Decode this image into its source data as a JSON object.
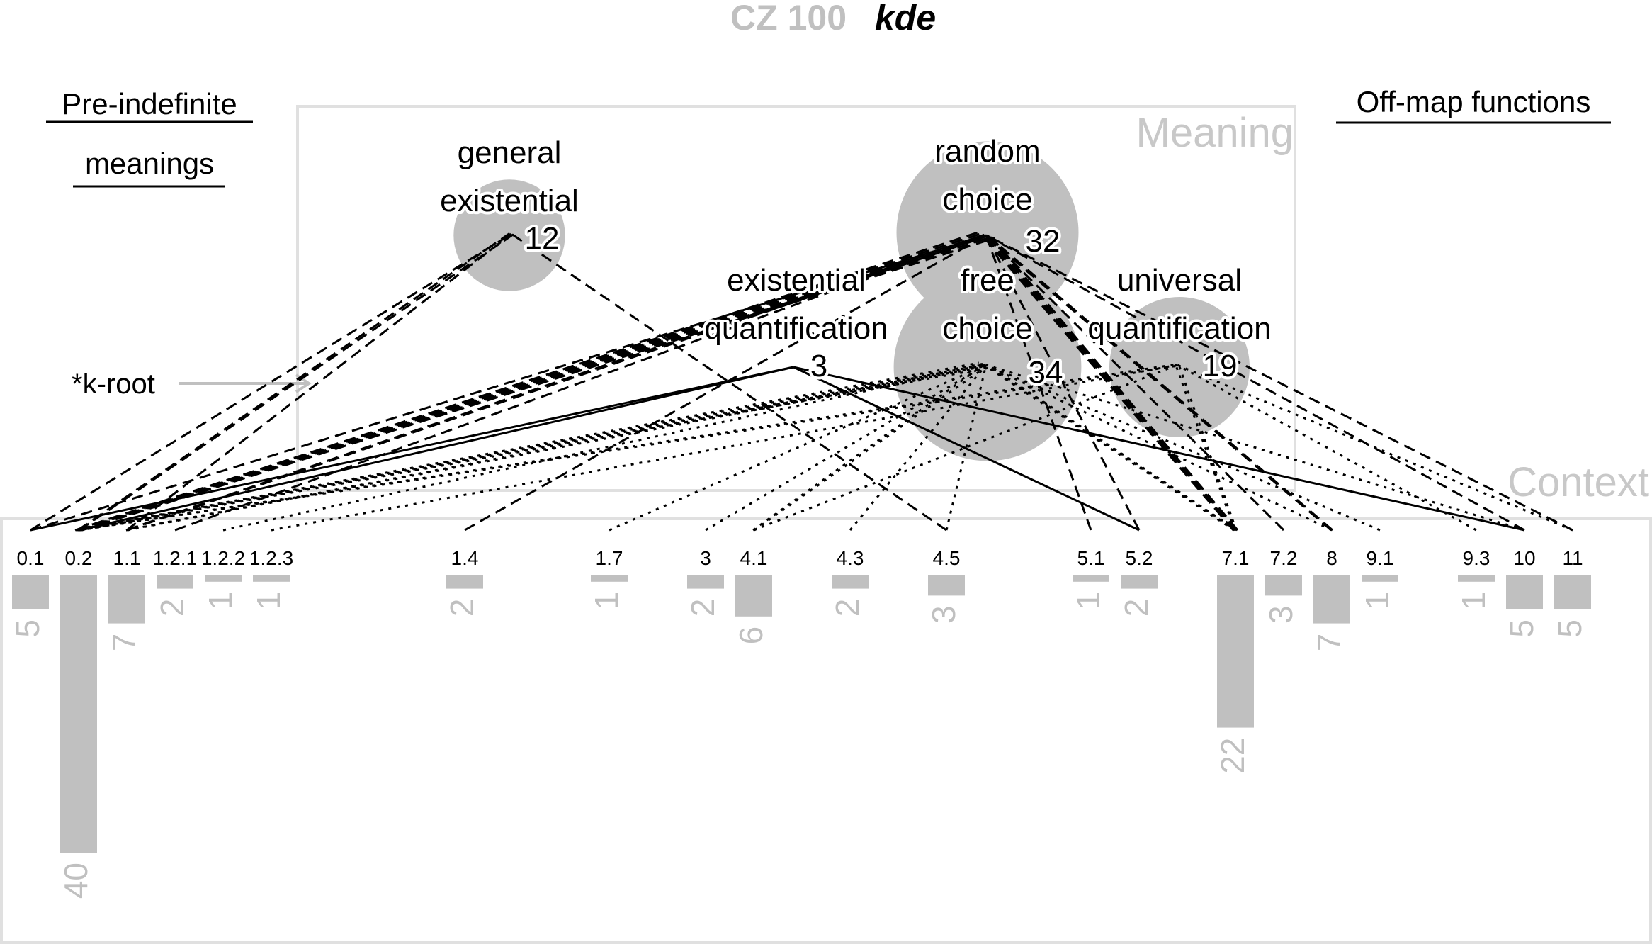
{
  "title": {
    "corpus": "CZ 100",
    "word": "kde"
  },
  "panels": {
    "pre_indefinite_line1": "Pre-indefinite",
    "pre_indefinite_line2": "meanings",
    "off_map": "Off-map functions",
    "meaning": "Meaning",
    "context": "Context",
    "root_label": "*k-root"
  },
  "colors": {
    "gray_fill": "#c0c0c0",
    "box_stroke": "#e0e0e0",
    "heading_gray": "#c0c0c0",
    "ink": "#000000"
  },
  "meanings": [
    {
      "id": "general_existential",
      "line1": "general",
      "line2": "existential",
      "count": "12",
      "value": 12
    },
    {
      "id": "random_choice",
      "line1": "random",
      "line2": "choice",
      "count": "32",
      "value": 32
    },
    {
      "id": "existential_quantification",
      "line1": "existential",
      "line2": "quantification",
      "count": "3",
      "value": 3
    },
    {
      "id": "free_choice",
      "line1": "free",
      "line2": "choice",
      "count": "34",
      "value": 34
    },
    {
      "id": "universal_quantification",
      "line1": "universal",
      "line2": "quantification",
      "count": "19",
      "value": 19
    }
  ],
  "contexts": [
    {
      "id": "0.1",
      "label": "0.1",
      "count": "5",
      "value": 5
    },
    {
      "id": "0.2",
      "label": "0.2",
      "count": "40",
      "value": 40
    },
    {
      "id": "1.1",
      "label": "1.1",
      "count": "7",
      "value": 7
    },
    {
      "id": "1.2.1",
      "label": "1.2.1",
      "count": "2",
      "value": 2
    },
    {
      "id": "1.2.2",
      "label": "1.2.2",
      "count": "1",
      "value": 1
    },
    {
      "id": "1.2.3",
      "label": "1.2.3",
      "count": "1",
      "value": 1
    },
    {
      "id": "1.4",
      "label": "1.4",
      "count": "2",
      "value": 2
    },
    {
      "id": "1.7",
      "label": "1.7",
      "count": "1",
      "value": 1
    },
    {
      "id": "3",
      "label": "3",
      "count": "2",
      "value": 2
    },
    {
      "id": "4.1",
      "label": "4.1",
      "count": "6",
      "value": 6
    },
    {
      "id": "4.3",
      "label": "4.3",
      "count": "2",
      "value": 2
    },
    {
      "id": "4.5",
      "label": "4.5",
      "count": "3",
      "value": 3
    },
    {
      "id": "5.1",
      "label": "5.1",
      "count": "1",
      "value": 1
    },
    {
      "id": "5.2",
      "label": "5.2",
      "count": "2",
      "value": 2
    },
    {
      "id": "7.1",
      "label": "7.1",
      "count": "22",
      "value": 22
    },
    {
      "id": "7.2",
      "label": "7.2",
      "count": "3",
      "value": 3
    },
    {
      "id": "8",
      "label": "8",
      "count": "7",
      "value": 7
    },
    {
      "id": "9.1",
      "label": "9.1",
      "count": "1",
      "value": 1
    },
    {
      "id": "9.3",
      "label": "9.3",
      "count": "1",
      "value": 1
    },
    {
      "id": "10",
      "label": "10",
      "count": "5",
      "value": 5
    },
    {
      "id": "11",
      "label": "11",
      "count": "5",
      "value": 5
    }
  ],
  "links": [
    {
      "context": "0.1",
      "meaning": "general_existential",
      "style": "dashed",
      "weight": 1
    },
    {
      "context": "0.2",
      "meaning": "general_existential",
      "style": "dashed",
      "weight": 2
    },
    {
      "context": "1.1",
      "meaning": "general_existential",
      "style": "dashed",
      "weight": 1
    },
    {
      "context": "4.5",
      "meaning": "general_existential",
      "style": "dashed",
      "weight": 1
    },
    {
      "context": "0.1",
      "meaning": "random_choice",
      "style": "dashed",
      "weight": 1
    },
    {
      "context": "0.2",
      "meaning": "random_choice",
      "style": "dashed",
      "weight": 6
    },
    {
      "context": "1.1",
      "meaning": "random_choice",
      "style": "dashed",
      "weight": 2
    },
    {
      "context": "1.2.1",
      "meaning": "random_choice",
      "style": "dashed",
      "weight": 1
    },
    {
      "context": "1.4",
      "meaning": "random_choice",
      "style": "dashed",
      "weight": 1
    },
    {
      "context": "7.1",
      "meaning": "random_choice",
      "style": "dashed",
      "weight": 4
    },
    {
      "context": "7.2",
      "meaning": "random_choice",
      "style": "dashed",
      "weight": 1
    },
    {
      "context": "8",
      "meaning": "random_choice",
      "style": "dashed",
      "weight": 2
    },
    {
      "context": "5.1",
      "meaning": "random_choice",
      "style": "dashed",
      "weight": 1
    },
    {
      "context": "5.2",
      "meaning": "random_choice",
      "style": "dashed",
      "weight": 1
    },
    {
      "context": "10",
      "meaning": "random_choice",
      "style": "dashed",
      "weight": 1
    },
    {
      "context": "11",
      "meaning": "random_choice",
      "style": "dashed",
      "weight": 1
    },
    {
      "context": "0.1",
      "meaning": "existential_quantification",
      "style": "solid",
      "weight": 1
    },
    {
      "context": "0.2",
      "meaning": "existential_quantification",
      "style": "solid",
      "weight": 1
    },
    {
      "context": "5.2",
      "meaning": "existential_quantification",
      "style": "solid",
      "weight": 1
    },
    {
      "context": "10",
      "meaning": "existential_quantification",
      "style": "solid",
      "weight": 1
    },
    {
      "context": "0.2",
      "meaning": "free_choice",
      "style": "dotted",
      "weight": 5
    },
    {
      "context": "1.1",
      "meaning": "free_choice",
      "style": "dotted",
      "weight": 2
    },
    {
      "context": "1.2.2",
      "meaning": "free_choice",
      "style": "dotted",
      "weight": 1
    },
    {
      "context": "1.7",
      "meaning": "free_choice",
      "style": "dotted",
      "weight": 1
    },
    {
      "context": "3",
      "meaning": "free_choice",
      "style": "dotted",
      "weight": 1
    },
    {
      "context": "4.1",
      "meaning": "free_choice",
      "style": "dotted",
      "weight": 2
    },
    {
      "context": "4.3",
      "meaning": "free_choice",
      "style": "dotted",
      "weight": 1
    },
    {
      "context": "4.5",
      "meaning": "free_choice",
      "style": "dotted",
      "weight": 1
    },
    {
      "context": "7.1",
      "meaning": "free_choice",
      "style": "dotted",
      "weight": 3
    },
    {
      "context": "8",
      "meaning": "free_choice",
      "style": "dotted",
      "weight": 1
    },
    {
      "context": "9.1",
      "meaning": "free_choice",
      "style": "dotted",
      "weight": 1
    },
    {
      "context": "10",
      "meaning": "free_choice",
      "style": "dotted",
      "weight": 1
    },
    {
      "context": "0.2",
      "meaning": "universal_quantification",
      "style": "dotted",
      "weight": 2
    },
    {
      "context": "1.2.3",
      "meaning": "universal_quantification",
      "style": "dotted",
      "weight": 1
    },
    {
      "context": "4.1",
      "meaning": "universal_quantification",
      "style": "dotted",
      "weight": 1
    },
    {
      "context": "7.1",
      "meaning": "universal_quantification",
      "style": "dotted",
      "weight": 2
    },
    {
      "context": "9.3",
      "meaning": "universal_quantification",
      "style": "dotted",
      "weight": 1
    },
    {
      "context": "11",
      "meaning": "universal_quantification",
      "style": "dotted",
      "weight": 1
    }
  ]
}
